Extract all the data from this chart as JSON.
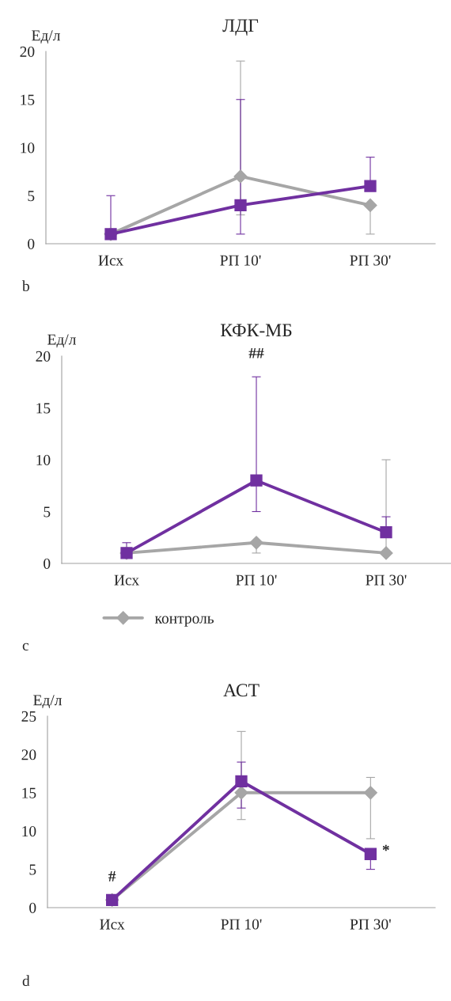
{
  "chart_data": [
    {
      "type": "line",
      "title": "ЛДГ",
      "ylabel": "Ед/л",
      "categories": [
        "Исх",
        "РП 10'",
        "РП 30'"
      ],
      "ylim": [
        0,
        20
      ],
      "yticks": [
        0,
        5,
        10,
        15,
        20
      ],
      "grid": false,
      "legend": false,
      "series": [
        {
          "color": "#a6a6a6",
          "marker": "diamond",
          "values": [
            1,
            7,
            4
          ],
          "errors": [
            null,
            [
              3,
              19
            ],
            [
              1,
              4
            ]
          ]
        },
        {
          "color": "#7030a0",
          "marker": "square",
          "values": [
            1,
            4,
            6
          ],
          "errors": [
            [
              1,
              5
            ],
            [
              1,
              15
            ],
            [
              6,
              9
            ]
          ]
        }
      ],
      "annotations": [
        "b"
      ]
    },
    {
      "type": "line",
      "title": "КФК-МБ",
      "ylabel": "Ед/л",
      "categories": [
        "Исх",
        "РП 10'",
        "РП 30'"
      ],
      "ylim": [
        0,
        20
      ],
      "yticks": [
        0,
        5,
        10,
        15,
        20
      ],
      "grid": false,
      "legend": "bottom",
      "series": [
        {
          "name": "контроль",
          "color": "#a6a6a6",
          "marker": "diamond",
          "values": [
            1,
            2,
            1
          ],
          "errors": [
            null,
            [
              1,
              2
            ],
            [
              1,
              10
            ]
          ]
        },
        {
          "color": "#7030a0",
          "marker": "square",
          "values": [
            1,
            8,
            3
          ],
          "errors": [
            [
              1,
              2
            ],
            [
              5,
              18
            ],
            [
              3,
              4.5
            ]
          ]
        }
      ],
      "annotations": [
        {
          "text": "##",
          "x": "РП 10'",
          "y": 18
        },
        "c"
      ]
    },
    {
      "type": "line",
      "title": "АСТ",
      "ylabel": "Ед/л",
      "categories": [
        "Исх",
        "РП 10'",
        "РП 30'"
      ],
      "ylim": [
        0,
        25
      ],
      "yticks": [
        0,
        5,
        10,
        15,
        20,
        25
      ],
      "grid": false,
      "legend": false,
      "series": [
        {
          "color": "#a6a6a6",
          "marker": "diamond",
          "values": [
            1,
            15,
            15
          ],
          "errors": [
            null,
            [
              11.5,
              23
            ],
            [
              9,
              17
            ]
          ]
        },
        {
          "color": "#7030a0",
          "marker": "square",
          "values": [
            1,
            16.5,
            7
          ],
          "errors": [
            null,
            [
              13,
              19
            ],
            [
              5,
              7
            ]
          ]
        }
      ],
      "annotations": [
        {
          "text": "#",
          "x": "Исх",
          "y": 1
        },
        {
          "text": "*",
          "x": "РП 30'",
          "y": 7
        },
        "d"
      ]
    }
  ]
}
